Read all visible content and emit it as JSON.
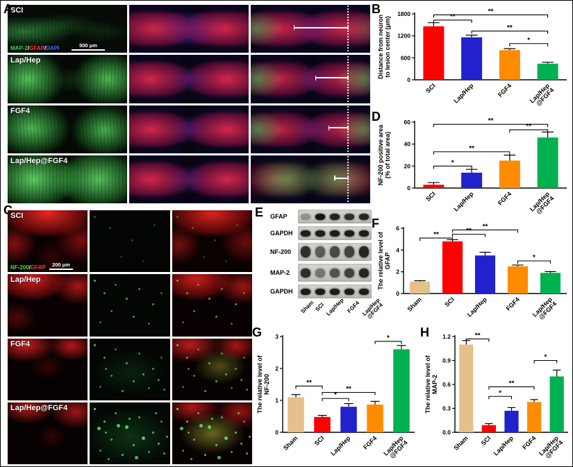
{
  "figure": {
    "panel_letters": {
      "A": "A",
      "B": "B",
      "C": "C",
      "D": "D",
      "E": "E",
      "F": "F",
      "G": "G",
      "H": "H"
    }
  },
  "panelA": {
    "rows": [
      "SCI",
      "Lap/Hep",
      "FGF4",
      "Lap/Hep@FGF4"
    ],
    "stain_parts": [
      {
        "text": "MAP-2",
        "color": "#2ee63a"
      },
      {
        "text": "/",
        "color": "#ffffff"
      },
      {
        "text": "GFAP",
        "color": "#ff3b30"
      },
      {
        "text": "/",
        "color": "#ffffff"
      },
      {
        "text": "DAPI",
        "color": "#4f6bff"
      }
    ],
    "scale_bar": "500 μm"
  },
  "panelC": {
    "rows": [
      "SCI",
      "Lap/Hep",
      "FGF4",
      "Lap/Hep@FGF4"
    ],
    "stain_parts": [
      {
        "text": "NF-200",
        "color": "#2ee63a"
      },
      {
        "text": "/",
        "color": "#ffffff"
      },
      {
        "text": "GFAP",
        "color": "#ff3b30"
      }
    ],
    "scale_bar": "200 μm"
  },
  "panelE": {
    "blots": [
      {
        "name": "GFAP",
        "h": 20,
        "band_h": 9,
        "bands": [
          0.3,
          1,
          0.92,
          0.85,
          0.9
        ]
      },
      {
        "name": "GAPDH",
        "h": 20,
        "band_h": 9,
        "bands": [
          0.95,
          0.95,
          0.95,
          0.95,
          0.95
        ]
      },
      {
        "name": "NF-200",
        "h": 26,
        "band_h": 16,
        "bands": [
          0.85,
          0.6,
          0.7,
          0.75,
          0.9
        ]
      },
      {
        "name": "MAP-2",
        "h": 26,
        "band_h": 13,
        "bands": [
          0.85,
          0.45,
          0.65,
          0.75,
          0.9
        ]
      },
      {
        "name": "GAPDH",
        "h": 20,
        "band_h": 9,
        "bands": [
          0.95,
          0.95,
          0.95,
          0.95,
          0.95
        ]
      }
    ],
    "lanes": [
      "Sham",
      "SCI",
      "Lap/Hep",
      "FGF4",
      "Lap/Hep\n@FGF4"
    ]
  },
  "chart_data": [
    {
      "id": "B",
      "type": "bar",
      "title": "",
      "ylabel": "Distance from neuron\nto lesion center (μm)",
      "xlabel": "",
      "categories": [
        "SCI",
        "Lap/Hep",
        "FGF4",
        "Lap/Hep\n@FGF4"
      ],
      "values": [
        1460,
        1160,
        810,
        440
      ],
      "errors": [
        100,
        60,
        40,
        40
      ],
      "colors": [
        "#fe0000",
        "#2121cd",
        "#ff8c00",
        "#00b14f"
      ],
      "ylim": [
        0,
        1800
      ],
      "yticks": [
        "0",
        "600",
        "1200",
        "1800"
      ],
      "significance": [
        {
          "from": 0,
          "to": 1,
          "y": 1630,
          "label": "**"
        },
        {
          "from": 0,
          "to": 3,
          "y": 1772,
          "label": "**"
        },
        {
          "from": 1,
          "to": 3,
          "y": 1330,
          "label": "**"
        },
        {
          "from": 2,
          "to": 3,
          "y": 990,
          "label": "*"
        }
      ]
    },
    {
      "id": "D",
      "type": "bar",
      "title": "",
      "ylabel": "NF-200 positive area\n(% of total area)",
      "xlabel": "",
      "categories": [
        "SCI",
        "Lap/Hep",
        "FGF4",
        "Lap/Hep\n@FGF4"
      ],
      "values": [
        3,
        14,
        25,
        46
      ],
      "errors": [
        2,
        3,
        5,
        5
      ],
      "colors": [
        "#fe0000",
        "#2121cd",
        "#ff8c00",
        "#00b14f"
      ],
      "ylim": [
        0,
        60
      ],
      "yticks": [
        "0",
        "20",
        "40",
        "60"
      ],
      "significance": [
        {
          "from": 0,
          "to": 1,
          "y": 20,
          "label": "*"
        },
        {
          "from": 0,
          "to": 2,
          "y": 33,
          "label": "**"
        },
        {
          "from": 0,
          "to": 3,
          "y": 58,
          "label": "**"
        },
        {
          "from": 2,
          "to": 3,
          "y": 53,
          "label": "**"
        }
      ]
    },
    {
      "id": "F",
      "type": "bar",
      "title": "",
      "ylabel": "The relative level of\nGFAP",
      "xlabel": "",
      "categories": [
        "Sham",
        "SCI",
        "Lap/Hep",
        "FGF4",
        "Lap/Hep\n@FGF4"
      ],
      "values": [
        1.1,
        4.8,
        3.5,
        2.5,
        1.9
      ],
      "errors": [
        0.08,
        0.15,
        0.3,
        0.12,
        0.12
      ],
      "colors": [
        "#e5c08b",
        "#fe0000",
        "#2121cd",
        "#ff8c00",
        "#00b14f"
      ],
      "ylim": [
        0,
        6
      ],
      "yticks": [
        "0",
        "2",
        "4",
        "6"
      ],
      "significance": [
        {
          "from": 0,
          "to": 1,
          "y": 5.1,
          "label": "**"
        },
        {
          "from": 1,
          "to": 2,
          "y": 5.45,
          "label": "**"
        },
        {
          "from": 1,
          "to": 3,
          "y": 5.85,
          "label": "**"
        },
        {
          "from": 3,
          "to": 4,
          "y": 3.0,
          "label": "*"
        }
      ]
    },
    {
      "id": "G",
      "type": "bar",
      "title": "",
      "ylabel": "The relative level of\nNF-200",
      "xlabel": "",
      "categories": [
        "Sham",
        "SCI",
        "Lap/Hep",
        "FGF4",
        "Lap/Hep\n@FGF4"
      ],
      "values": [
        1.1,
        0.48,
        0.8,
        0.87,
        2.6
      ],
      "errors": [
        0.08,
        0.05,
        0.1,
        0.1,
        0.12
      ],
      "colors": [
        "#e5c08b",
        "#fe0000",
        "#2121cd",
        "#ff8c00",
        "#00b14f"
      ],
      "ylim": [
        0,
        3
      ],
      "yticks": [
        "0",
        "1",
        "2",
        "3"
      ],
      "significance": [
        {
          "from": 0,
          "to": 1,
          "y": 1.45,
          "label": "**"
        },
        {
          "from": 1,
          "to": 2,
          "y": 1.06,
          "label": "*"
        },
        {
          "from": 1,
          "to": 3,
          "y": 1.25,
          "label": "**"
        },
        {
          "from": 3,
          "to": 4,
          "y": 2.85,
          "label": "*"
        }
      ]
    },
    {
      "id": "H",
      "type": "bar",
      "title": "",
      "ylabel": "The relative level of\nMAP-2",
      "xlabel": "",
      "categories": [
        "Sham",
        "SCI",
        "Lap/Hep",
        "FGF4",
        "Lap/Hep\n@FGF4"
      ],
      "values": [
        1.1,
        0.09,
        0.27,
        0.38,
        0.7
      ],
      "errors": [
        0.05,
        0.02,
        0.04,
        0.03,
        0.08
      ],
      "colors": [
        "#e5c08b",
        "#fe0000",
        "#2121cd",
        "#ff8c00",
        "#00b14f"
      ],
      "ylim": [
        0,
        1.2
      ],
      "yticks": [
        "0.0",
        "0.3",
        "0.6",
        "0.9",
        "1.2"
      ],
      "significance": [
        {
          "from": 0,
          "to": 1,
          "y": 1.17,
          "label": "**"
        },
        {
          "from": 1,
          "to": 2,
          "y": 0.45,
          "label": "*"
        },
        {
          "from": 1,
          "to": 3,
          "y": 0.57,
          "label": "**"
        },
        {
          "from": 3,
          "to": 4,
          "y": 0.9,
          "label": "*"
        }
      ]
    }
  ]
}
